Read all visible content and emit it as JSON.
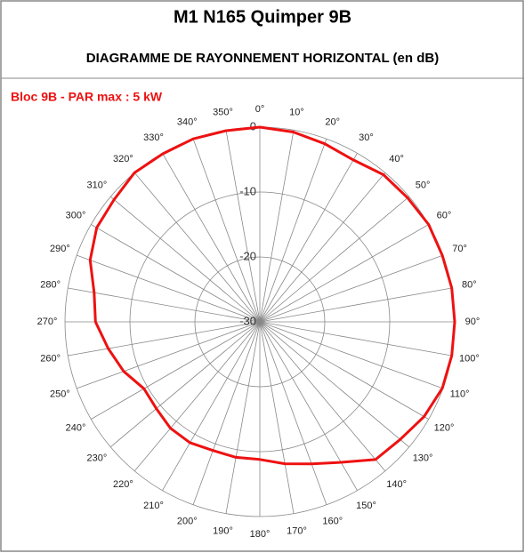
{
  "chart_data": {
    "type": "polar",
    "title": "M1 N165 Quimper 9B",
    "subtitle": "DIAGRAMME DE RAYONNEMENT HORIZONTAL  (en dB)",
    "series": [
      {
        "name": "Bloc 9B - PAR max : 5 kW",
        "color": "#ee1111",
        "theta": [
          0,
          10,
          20,
          30,
          40,
          50,
          60,
          70,
          80,
          90,
          100,
          110,
          120,
          130,
          140,
          150,
          160,
          170,
          180,
          190,
          200,
          210,
          220,
          230,
          240,
          250,
          260,
          270,
          280,
          290,
          300,
          310,
          320,
          330,
          340,
          350
        ],
        "values": [
          0,
          -0.3,
          -0.8,
          -1.2,
          -0.4,
          -0.3,
          0,
          -0.1,
          0,
          0,
          0,
          -0.1,
          -0.8,
          -1.8,
          -2.3,
          -5,
          -6.7,
          -7.8,
          -8.8,
          -8.8,
          -8.9,
          -8.5,
          -8.6,
          -9.2,
          -9.4,
          -7.7,
          -6.3,
          -4.7,
          -4.1,
          -2.2,
          -1,
          -0.7,
          0,
          -0.1,
          0,
          -0.1
        ]
      }
    ],
    "rlim": [
      -30,
      0
    ],
    "rticks": [
      -30,
      -20,
      -10,
      0
    ],
    "thetaticks": [
      {
        "value": 0,
        "label": "0°"
      },
      {
        "value": 10,
        "label": "10°"
      },
      {
        "value": 20,
        "label": "20°"
      },
      {
        "value": 30,
        "label": "30°"
      },
      {
        "value": 40,
        "label": "40°"
      },
      {
        "value": 50,
        "label": "50°"
      },
      {
        "value": 60,
        "label": "60°"
      },
      {
        "value": 70,
        "label": "70°"
      },
      {
        "value": 80,
        "label": "80°"
      },
      {
        "value": 90,
        "label": "90°"
      },
      {
        "value": 100,
        "label": "100°"
      },
      {
        "value": 110,
        "label": "110°"
      },
      {
        "value": 120,
        "label": "120°"
      },
      {
        "value": 130,
        "label": "130°"
      },
      {
        "value": 140,
        "label": "140°"
      },
      {
        "value": 150,
        "label": "150°"
      },
      {
        "value": 160,
        "label": "160°"
      },
      {
        "value": 170,
        "label": "170°"
      },
      {
        "value": 180,
        "label": "180°"
      },
      {
        "value": 190,
        "label": "190°"
      },
      {
        "value": 200,
        "label": "200°"
      },
      {
        "value": 210,
        "label": "210°"
      },
      {
        "value": 220,
        "label": "220°"
      },
      {
        "value": 230,
        "label": "230°"
      },
      {
        "value": 240,
        "label": "240°"
      },
      {
        "value": 250,
        "label": "250°"
      },
      {
        "value": 260,
        "label": "260°"
      },
      {
        "value": 270,
        "label": "270°"
      },
      {
        "value": 280,
        "label": "280°"
      },
      {
        "value": 290,
        "label": "290°"
      },
      {
        "value": 300,
        "label": "300°"
      },
      {
        "value": 310,
        "label": "310°"
      },
      {
        "value": 320,
        "label": "320°"
      },
      {
        "value": 330,
        "label": "330°"
      },
      {
        "value": 340,
        "label": "340°"
      },
      {
        "value": 350,
        "label": "350°"
      }
    ],
    "grid": true
  }
}
